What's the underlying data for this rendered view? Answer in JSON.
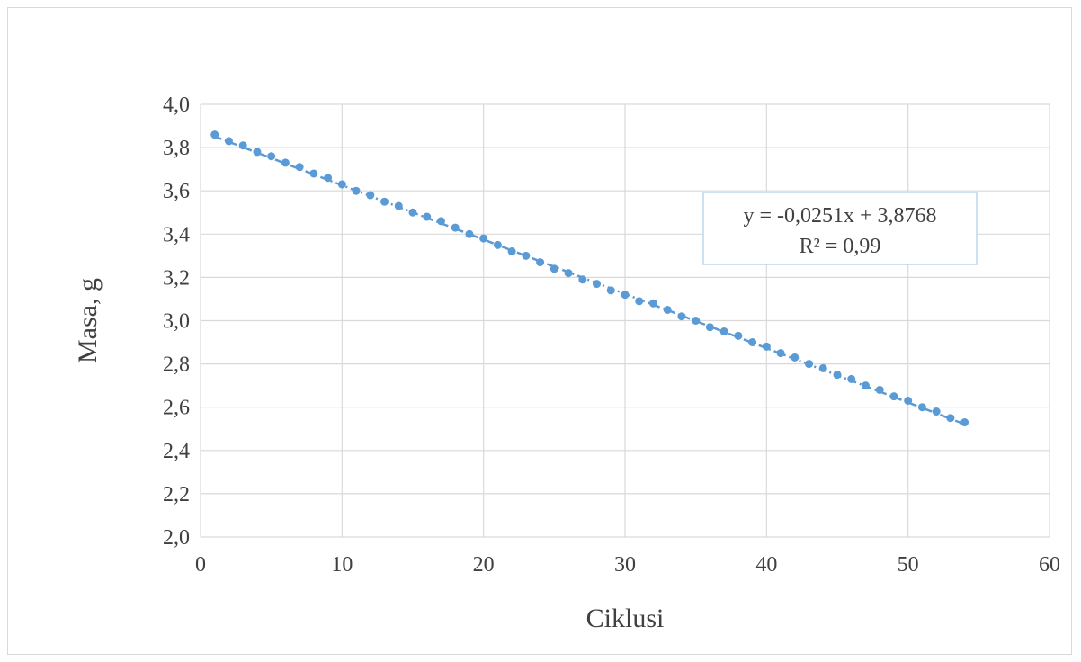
{
  "chart_data": {
    "type": "scatter",
    "title": "",
    "xlabel": "Ciklusi",
    "ylabel": "Masa, g",
    "xlim": [
      0,
      60
    ],
    "ylim": [
      2.0,
      4.0
    ],
    "x_ticks": [
      0,
      10,
      20,
      30,
      40,
      50,
      60
    ],
    "y_ticks": [
      2.0,
      2.2,
      2.4,
      2.6,
      2.8,
      3.0,
      3.2,
      3.4,
      3.6,
      3.8,
      4.0
    ],
    "x_tick_labels": [
      "0",
      "10",
      "20",
      "30",
      "40",
      "50",
      "60"
    ],
    "y_tick_labels": [
      "2,0",
      "2,2",
      "2,4",
      "2,6",
      "2,8",
      "3,0",
      "3,2",
      "3,4",
      "3,6",
      "3,8",
      "4,0"
    ],
    "grid": true,
    "legend": "none",
    "series": [
      {
        "color": "#5b9bd5",
        "x": [
          1,
          2,
          3,
          4,
          5,
          6,
          7,
          8,
          9,
          10,
          11,
          12,
          13,
          14,
          15,
          16,
          17,
          18,
          19,
          20,
          21,
          22,
          23,
          24,
          25,
          26,
          27,
          28,
          29,
          30,
          31,
          32,
          33,
          34,
          35,
          36,
          37,
          38,
          39,
          40,
          41,
          42,
          43,
          44,
          45,
          46,
          47,
          48,
          49,
          50,
          51,
          52,
          53,
          54
        ],
        "y": [
          3.86,
          3.83,
          3.81,
          3.78,
          3.76,
          3.73,
          3.71,
          3.68,
          3.66,
          3.63,
          3.6,
          3.58,
          3.55,
          3.53,
          3.5,
          3.48,
          3.46,
          3.43,
          3.4,
          3.38,
          3.35,
          3.32,
          3.3,
          3.27,
          3.24,
          3.22,
          3.19,
          3.17,
          3.14,
          3.12,
          3.09,
          3.08,
          3.05,
          3.02,
          3.0,
          2.97,
          2.95,
          2.93,
          2.9,
          2.88,
          2.85,
          2.83,
          2.8,
          2.78,
          2.75,
          2.73,
          2.7,
          2.68,
          2.65,
          2.63,
          2.6,
          2.58,
          2.55,
          2.53
        ]
      }
    ],
    "trendline": {
      "type": "linear",
      "slope": -0.0251,
      "intercept": 3.8768,
      "x_range": [
        1,
        54
      ],
      "color": "#5b9bd5",
      "style": "dash-dot"
    },
    "annotation": {
      "equation": "y = -0,0251x + 3,8768",
      "r_squared": "R² = 0,99",
      "border_color": "#bdd7ee"
    }
  }
}
